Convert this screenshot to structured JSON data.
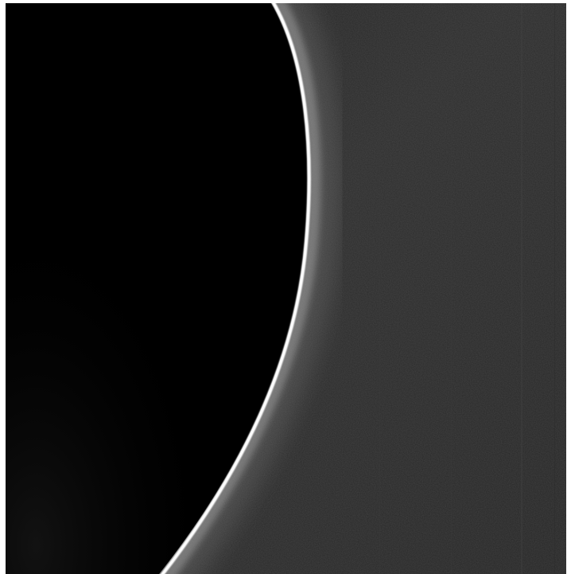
{
  "image": {
    "subject": "limb-of-dark-planet-with-bright-atmospheric-haze-against-space",
    "colors": {
      "frame": "#ffffff",
      "space_dark": "#1a1a1a",
      "space_mid": "#333333",
      "planet_disk": "#000000",
      "limb_highlight": "#ffffff",
      "haze_glow": "#bfbfbf"
    }
  }
}
